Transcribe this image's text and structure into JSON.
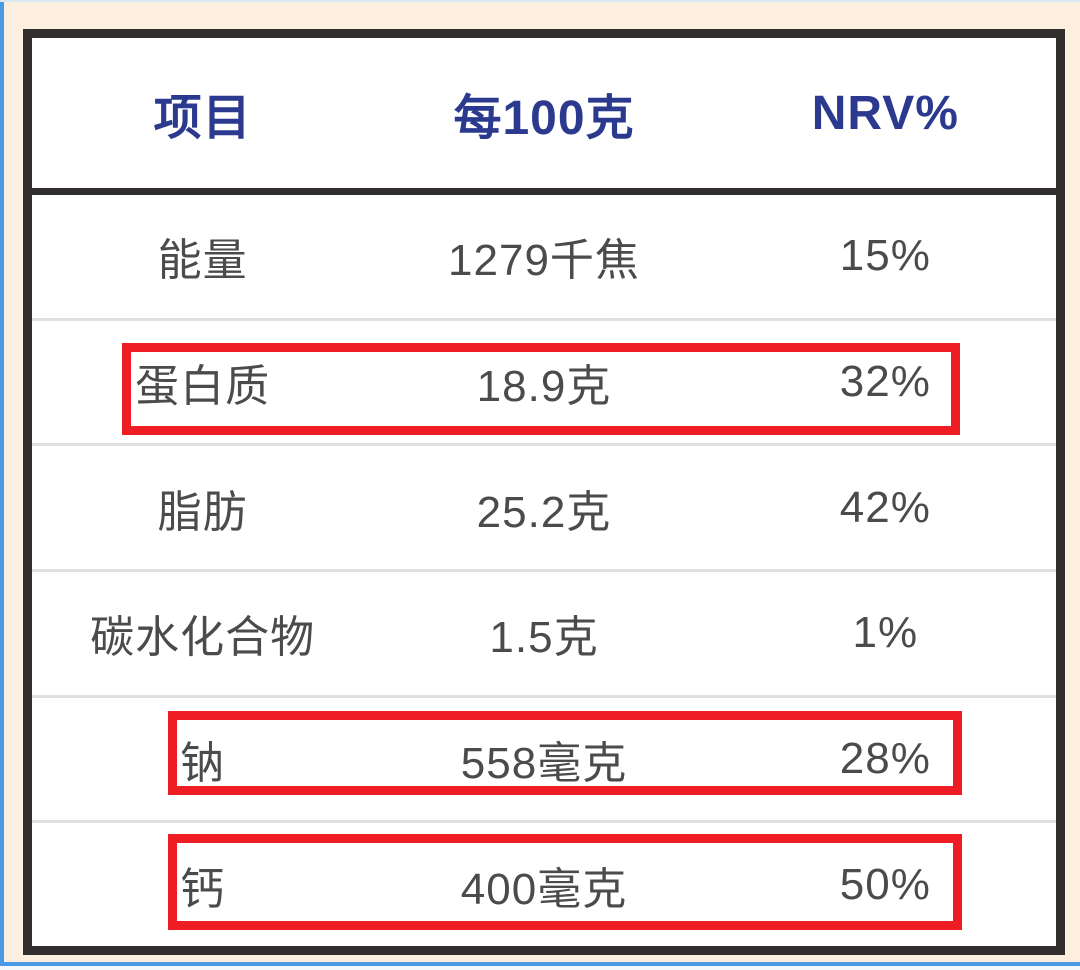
{
  "table": {
    "headers": [
      {
        "label": "项目"
      },
      {
        "label": "每100克"
      },
      {
        "label": "NRV%"
      }
    ],
    "rows": [
      {
        "name": "能量",
        "per100g": "1279千焦",
        "nrv": "15%",
        "highlighted": false
      },
      {
        "name": "蛋白质",
        "per100g": "18.9克",
        "nrv": "32%",
        "highlighted": true
      },
      {
        "name": "脂肪",
        "per100g": "25.2克",
        "nrv": "42%",
        "highlighted": false
      },
      {
        "name": "碳水化合物",
        "per100g": "1.5克",
        "nrv": "1%",
        "highlighted": false
      },
      {
        "name": "钠",
        "per100g": "558毫克",
        "nrv": "28%",
        "highlighted": true
      },
      {
        "name": "钙",
        "per100g": "400毫克",
        "nrv": "50%",
        "highlighted": true
      }
    ]
  },
  "colors": {
    "background_cream": "#fcefe0",
    "frame_blue": "#4a9ae5",
    "table_border": "#332e2e",
    "header_text_navy": "#2b3a8e",
    "body_text_gray": "#4b4b4b",
    "row_separator": "#e0e0e0",
    "highlight_red": "#ee1c23"
  }
}
